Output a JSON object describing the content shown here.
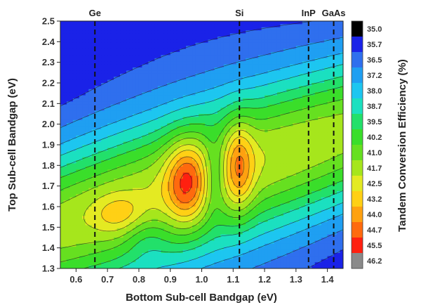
{
  "chart_data": {
    "type": "heatmap",
    "title": "",
    "xlabel": "Bottom Sub-cell Bandgap (eV)",
    "ylabel": "Top Sub-cell Bandgap (eV)",
    "colorbar_label": "Tandem Conversion Efficiency (%)",
    "xlim": [
      0.55,
      1.45
    ],
    "ylim": [
      1.3,
      2.5
    ],
    "x_ticks": [
      "0.6",
      "0.7",
      "0.8",
      "0.9",
      "1.0",
      "1.1",
      "1.2",
      "1.3",
      "1.4"
    ],
    "y_ticks": [
      "1.3",
      "1.4",
      "1.5",
      "1.6",
      "1.7",
      "1.8",
      "1.9",
      "2.0",
      "2.1",
      "2.2",
      "2.3",
      "2.4",
      "2.5"
    ],
    "colorbar_levels": [
      "35.0",
      "35.7",
      "36.5",
      "37.2",
      "38.0",
      "38.7",
      "39.5",
      "40.2",
      "41.0",
      "41.7",
      "42.5",
      "43.2",
      "44.0",
      "44.7",
      "45.5",
      "46.2"
    ],
    "colorbar_colors": [
      "#000000",
      "#1a22e8",
      "#2f6fee",
      "#1f9ff2",
      "#1dc6f0",
      "#1be0c0",
      "#22e06a",
      "#3ade2a",
      "#66e020",
      "#a6e61c",
      "#e4ea22",
      "#ffd015",
      "#ffa110",
      "#ff6a0e",
      "#ff2010",
      "#8a8a8a"
    ],
    "materials": [
      {
        "name": "Ge",
        "x": 0.66
      },
      {
        "name": "Si",
        "x": 1.12
      },
      {
        "name": "InP",
        "x": 1.34
      },
      {
        "name": "GaAs",
        "x": 1.42
      }
    ],
    "peaks": [
      {
        "x": 0.95,
        "y": 1.72,
        "value": 45.8
      },
      {
        "x": 1.12,
        "y": 1.8,
        "value": 45.0
      },
      {
        "x": 0.74,
        "y": 1.56,
        "value": 43.9
      }
    ],
    "grid": false,
    "contour_lines": true
  }
}
